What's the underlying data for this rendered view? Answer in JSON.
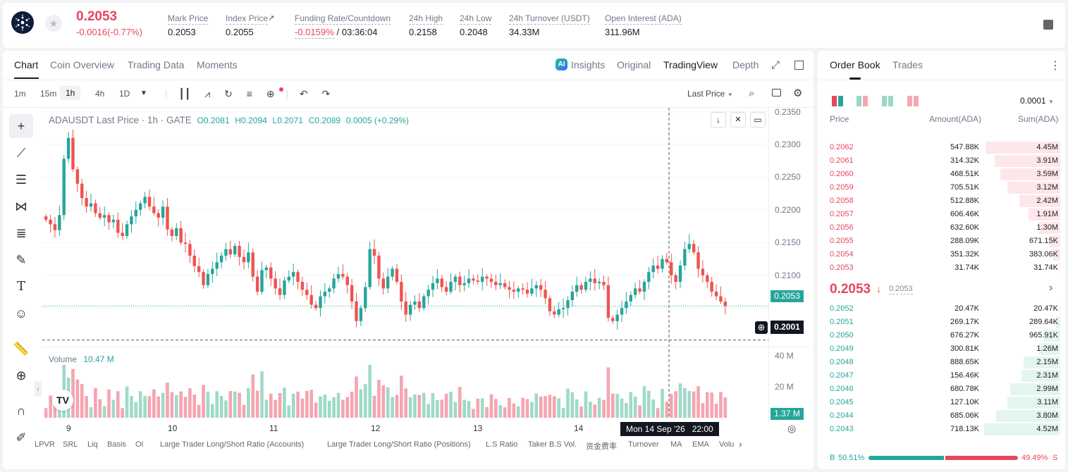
{
  "header": {
    "last_price": "0.2053",
    "change": "-0.0016(-0.77%)",
    "stats": [
      {
        "label": "Mark Price",
        "value": "0.2053"
      },
      {
        "label": "Index Price",
        "value": "0.2055",
        "icon": "arrow-up-right-icon"
      },
      {
        "label": "Funding Rate/Countdown",
        "value": "-0.0159%",
        "value2": "/ 03:36:04"
      },
      {
        "label": "24h High",
        "value": "0.2158"
      },
      {
        "label": "24h Low",
        "value": "0.2048"
      },
      {
        "label": "24h Turnover (USDT)",
        "value": "34.33M"
      },
      {
        "label": "Open Interest (ADA)",
        "value": "311.96M"
      }
    ]
  },
  "chart_tabs": [
    "Chart",
    "Coin Overview",
    "Trading Data",
    "Moments"
  ],
  "view_tabs": [
    "Insights",
    "Original",
    "TradingView",
    "Depth"
  ],
  "timeframes": [
    "1m",
    "15m",
    "1h",
    "4h",
    "1D"
  ],
  "price_type": "Last Price",
  "legend": {
    "symbol": "ADAUSDT Last Price · 1h · GATE",
    "o": "O0.2081",
    "h": "H0.2094",
    "l": "L0.2071",
    "c": "C0.2089",
    "chg": "0.0005 (+0.29%)"
  },
  "volume_legend": {
    "label": "Volume",
    "value": "10.47 M"
  },
  "crosshair": {
    "date": "Mon 14 Sep '26",
    "time": "22:00",
    "price": "0.2001"
  },
  "current_price_tag": "0.2053",
  "volume_tag": "1.37 M",
  "indicators": [
    "LPVR",
    "SRL",
    "Liq",
    "Basis",
    "OI",
    "Large Trader Long/Short Ratio (Accounts)",
    "Large Trader Long/Short Ratio (Positions)",
    "L.S Ratio",
    "Taker B.S Vol.",
    "资金费率",
    "Turnover",
    "MA",
    "EMA",
    "Volu"
  ],
  "order_book": {
    "tabs": [
      "Order Book",
      "Trades"
    ],
    "precision": "0.0001",
    "headers": [
      "Price",
      "Amount(ADA)",
      "Sum(ADA)"
    ],
    "asks": [
      [
        "0.2062",
        "547.88K",
        "4.45M",
        0.98
      ],
      [
        "0.2061",
        "314.32K",
        "3.91M",
        0.86
      ],
      [
        "0.2060",
        "468.51K",
        "3.59M",
        0.79
      ],
      [
        "0.2059",
        "705.51K",
        "3.12M",
        0.69
      ],
      [
        "0.2058",
        "512.88K",
        "2.42M",
        0.54
      ],
      [
        "0.2057",
        "606.46K",
        "1.91M",
        0.42
      ],
      [
        "0.2056",
        "632.60K",
        "1.30M",
        0.29
      ],
      [
        "0.2055",
        "288.09K",
        "671.15K",
        0.15
      ],
      [
        "0.2054",
        "351.32K",
        "383.06K",
        0.09
      ],
      [
        "0.2053",
        "31.74K",
        "31.74K",
        0.01
      ]
    ],
    "mid_price": "0.2053",
    "mid_mark": "0.2053",
    "bids": [
      [
        "0.2052",
        "20.47K",
        "20.47K",
        0.01
      ],
      [
        "0.2051",
        "269.17K",
        "289.64K",
        0.06
      ],
      [
        "0.2050",
        "676.27K",
        "965.91K",
        0.21
      ],
      [
        "0.2049",
        "300.81K",
        "1.26M",
        0.28
      ],
      [
        "0.2048",
        "888.65K",
        "2.15M",
        0.48
      ],
      [
        "0.2047",
        "156.46K",
        "2.31M",
        0.51
      ],
      [
        "0.2046",
        "680.78K",
        "2.99M",
        0.66
      ],
      [
        "0.2045",
        "127.10K",
        "3.11M",
        0.69
      ],
      [
        "0.2044",
        "685.06K",
        "3.80M",
        0.84
      ],
      [
        "0.2043",
        "718.13K",
        "4.52M",
        1.0
      ]
    ],
    "buy_ratio": "50.51%",
    "sell_ratio": "49.49%",
    "buy_label": "B",
    "sell_label": "S",
    "buy_fraction": 0.5051
  },
  "chart_data": {
    "type": "candlestick",
    "y_axis": [
      "0.2350",
      "0.2300",
      "0.2250",
      "0.2200",
      "0.2150",
      "0.2100",
      "0.2050"
    ],
    "volume_axis": [
      "40 M",
      "20 M"
    ],
    "x_axis": [
      "9",
      "10",
      "11",
      "12",
      "13",
      "14"
    ],
    "ylim": [
      0.199,
      0.2356
    ],
    "close": [
      0.2185,
      0.2178,
      0.2169,
      0.2192,
      0.2278,
      0.231,
      0.2262,
      0.224,
      0.2218,
      0.2205,
      0.221,
      0.2195,
      0.2188,
      0.2192,
      0.2181,
      0.2185,
      0.2165,
      0.216,
      0.2178,
      0.219,
      0.22,
      0.221,
      0.222,
      0.2205,
      0.2195,
      0.2188,
      0.2205,
      0.217,
      0.216,
      0.2172,
      0.215,
      0.2148,
      0.213,
      0.2114,
      0.2105,
      0.2085,
      0.2102,
      0.211,
      0.212,
      0.213,
      0.214,
      0.2132,
      0.2145,
      0.2128,
      0.212,
      0.2135,
      0.2098,
      0.2075,
      0.2108,
      0.2112,
      0.2095,
      0.208,
      0.207,
      0.2092,
      0.2098,
      0.2105,
      0.209,
      0.2078,
      0.207,
      0.2055,
      0.205,
      0.2068,
      0.2075,
      0.208,
      0.2095,
      0.2102,
      0.2098,
      0.2085,
      0.206,
      0.203,
      0.205,
      0.2082,
      0.214,
      0.213,
      0.2095,
      0.208,
      0.2098,
      0.211,
      0.209,
      0.206,
      0.204,
      0.2055,
      0.206,
      0.205,
      0.2068,
      0.2078,
      0.2088,
      0.2095,
      0.2082,
      0.2075,
      0.209,
      0.2098,
      0.2085,
      0.2088,
      0.2095,
      0.2092,
      0.209,
      0.2098,
      0.2095,
      0.209,
      0.2085,
      0.2088,
      0.2082,
      0.2078,
      0.2075,
      0.208,
      0.2078,
      0.2072,
      0.208,
      0.2085,
      0.2078,
      0.2065,
      0.2045,
      0.204,
      0.2048,
      0.205,
      0.2062,
      0.2075,
      0.2085,
      0.2078,
      0.209,
      0.2095,
      0.2088,
      0.209,
      0.2085,
      0.2035,
      0.203,
      0.204,
      0.205,
      0.206,
      0.207,
      0.208,
      0.2075,
      0.209,
      0.2105,
      0.2115,
      0.211,
      0.2125,
      0.212,
      0.21,
      0.209,
      0.2115,
      0.214,
      0.2148,
      0.2135,
      0.211,
      0.21,
      0.209,
      0.2075,
      0.2068,
      0.206,
      0.2053
    ]
  }
}
